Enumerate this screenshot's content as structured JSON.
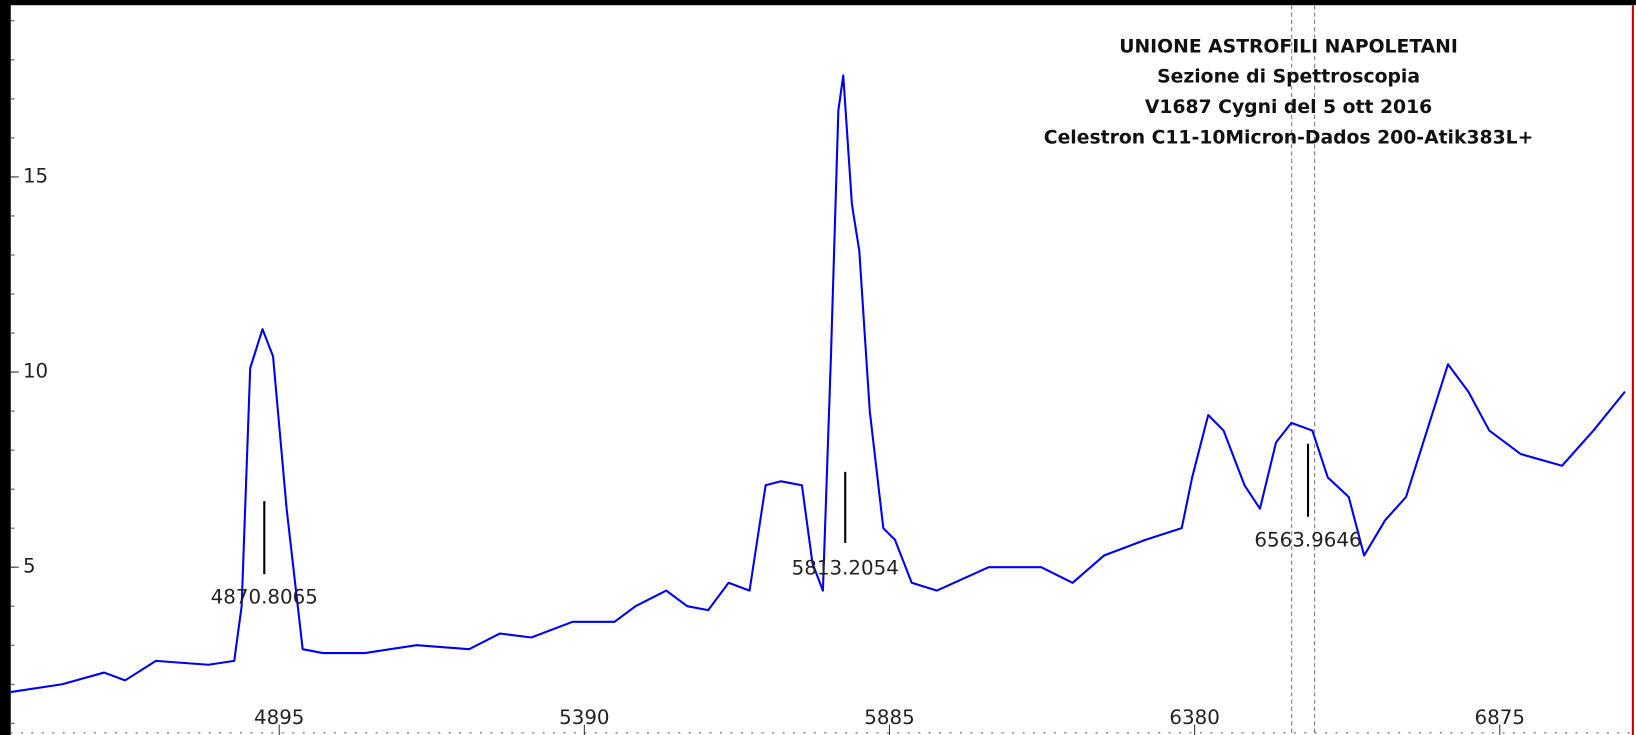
{
  "chart_data": {
    "type": "line",
    "title": [
      "UNIONE ASTROFILI NAPOLETANI",
      "Sezione di Spettroscopia",
      "V1687 Cygni del 5 ott 2016",
      "Celestron C11-10Micron-Dados 200-Atik383L+"
    ],
    "x": [
      4459,
      4543,
      4611,
      4645,
      4695,
      4780,
      4822,
      4834,
      4848,
      4868,
      4885,
      4907,
      4933,
      4966,
      5034,
      5118,
      5203,
      5253,
      5304,
      5371,
      5439,
      5473,
      5523,
      5557,
      5591,
      5624,
      5658,
      5684,
      5709,
      5743,
      5760,
      5777,
      5790,
      5802,
      5810,
      5824,
      5836,
      5853,
      5875,
      5894,
      5921,
      5962,
      6046,
      6131,
      6182,
      6233,
      6300,
      6359,
      6376,
      6402,
      6427,
      6461,
      6486,
      6512,
      6537,
      6571,
      6596,
      6630,
      6655,
      6689,
      6723,
      6757,
      6791,
      6824,
      6858,
      6909,
      6976,
      7027,
      7078
    ],
    "series": [
      {
        "color": "#0000ee",
        "values": [
          1.8,
          2.0,
          2.3,
          2.1,
          2.6,
          2.5,
          2.6,
          4.0,
          10.1,
          11.1,
          10.4,
          6.5,
          2.9,
          2.8,
          2.8,
          3.0,
          2.9,
          3.3,
          3.2,
          3.6,
          3.6,
          4.0,
          4.4,
          4.0,
          3.9,
          4.6,
          4.4,
          7.1,
          7.2,
          7.1,
          5.1,
          4.4,
          10.4,
          16.7,
          17.6,
          14.3,
          13.1,
          9.0,
          6.0,
          5.7,
          4.6,
          4.4,
          5.0,
          5.0,
          4.6,
          5.3,
          5.7,
          6.0,
          7.3,
          8.9,
          8.5,
          7.1,
          6.5,
          8.2,
          8.7,
          8.5,
          7.3,
          6.8,
          5.3,
          6.2,
          6.8,
          8.5,
          10.2,
          9.5,
          8.5,
          7.9,
          7.6,
          8.5,
          9.5
        ]
      }
    ],
    "annotations": [
      4870.8065,
      5813.2054,
      6563.9646
    ],
    "xlim": [
      4459,
      7096
    ],
    "ylim": [
      0.7,
      19.4
    ],
    "xticks": [
      4895,
      5390,
      5885,
      6380,
      6875
    ],
    "yticks": [
      5,
      10,
      15
    ]
  }
}
